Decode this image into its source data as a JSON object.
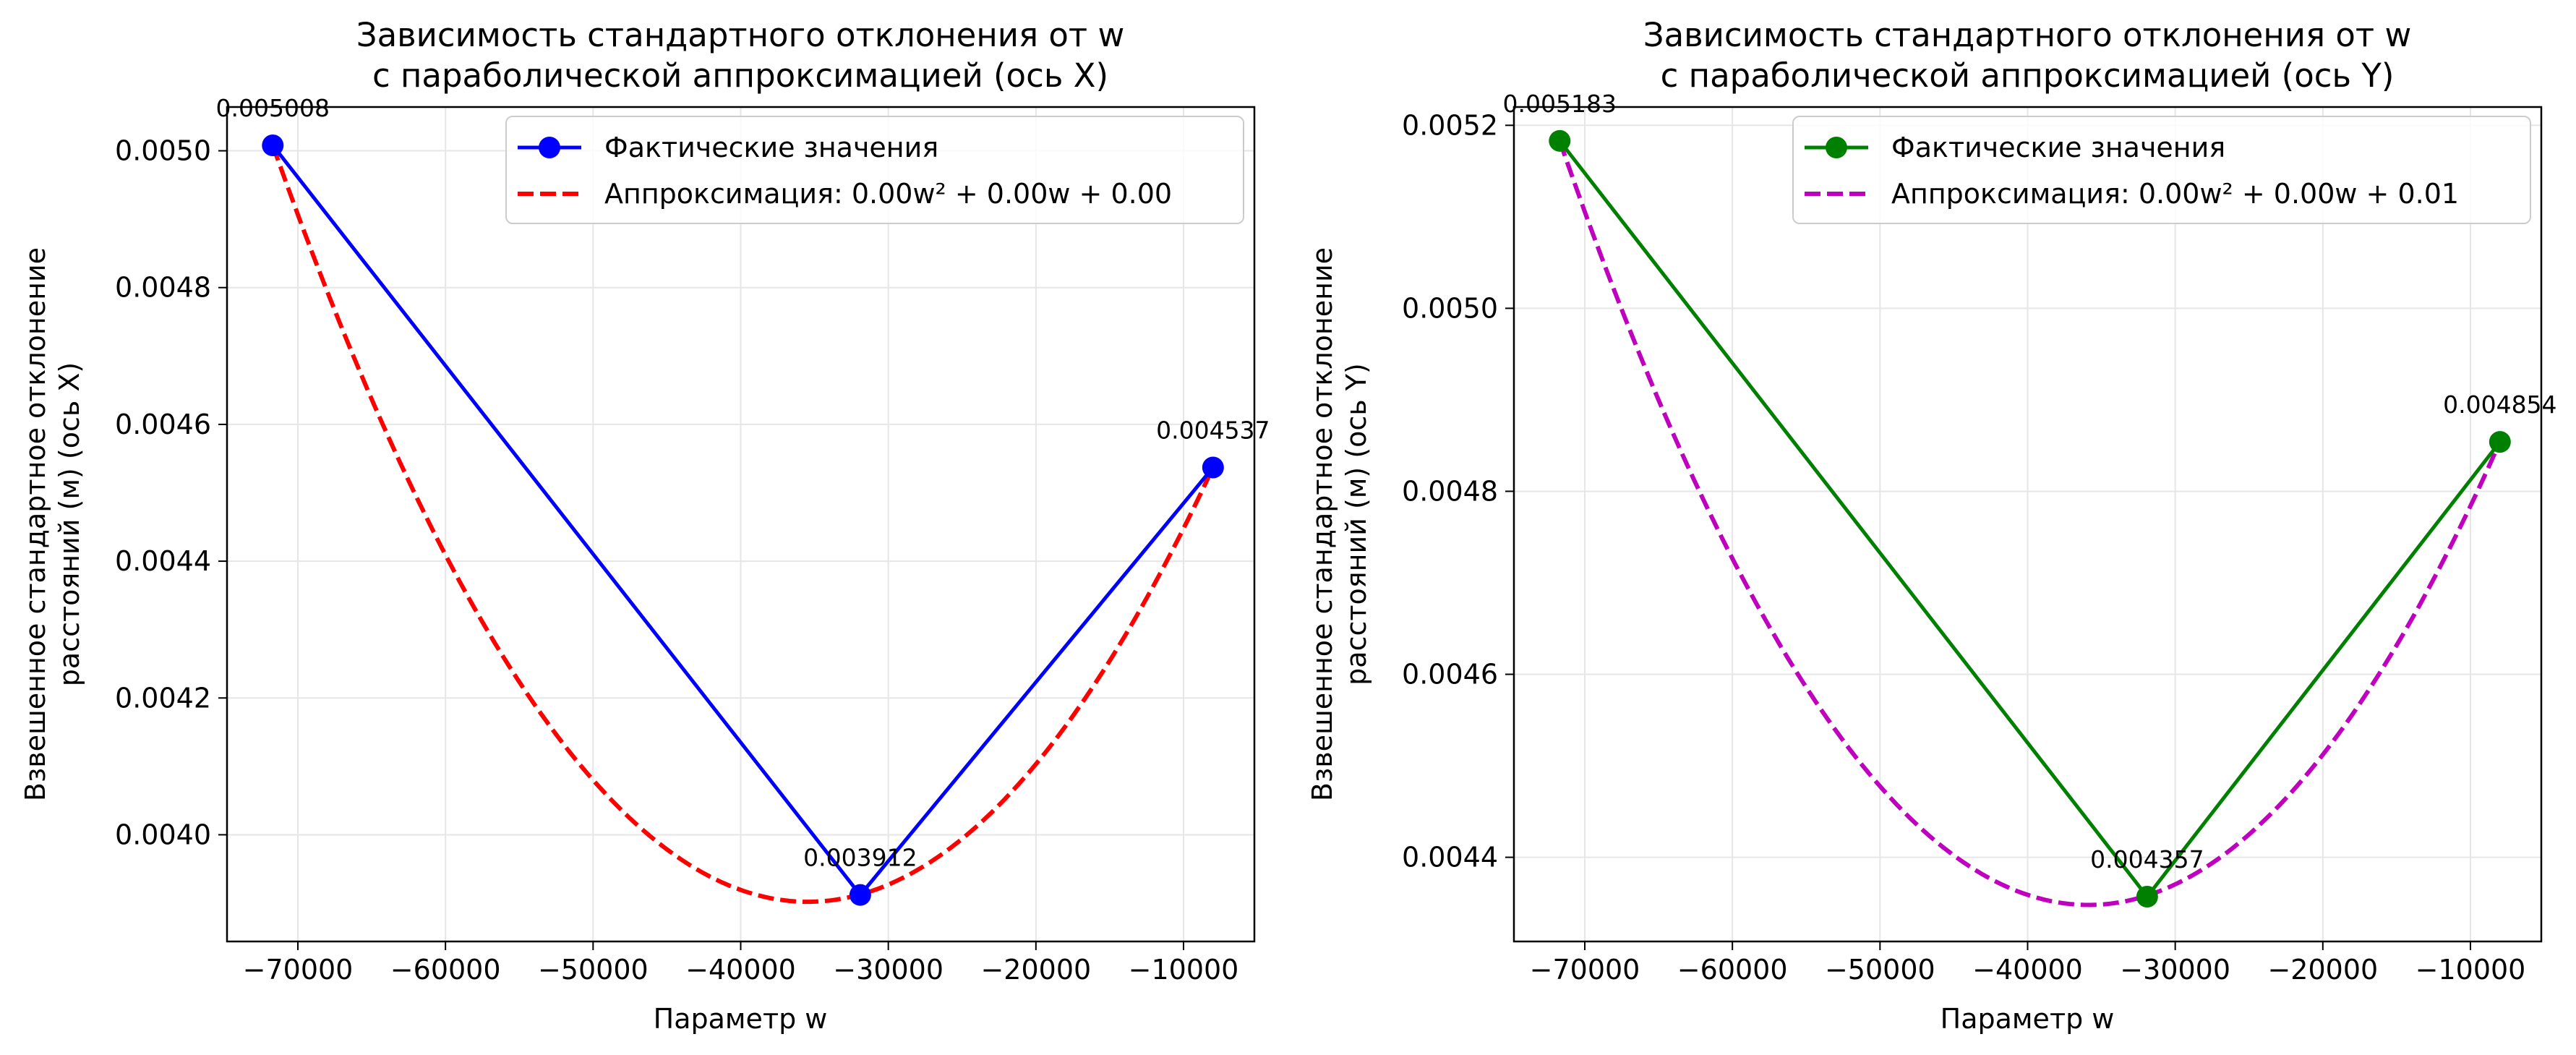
{
  "colors": {
    "background": "#ffffff",
    "grid": "#e6e6e6",
    "axes": "#000000"
  },
  "chart_data": [
    {
      "type": "line",
      "title_line1": "Зависимость стандартного отклонения от w",
      "title_line2": "с параболической аппроксимацией (ось X)",
      "xlabel": "Параметр w",
      "ylabel_line1": "Взвешенное стандартное отклонение",
      "ylabel_line2": "расстояний (м) (ось X)",
      "xlim": [
        -74800,
        -5200
      ],
      "ylim": [
        0.003844,
        0.005064
      ],
      "grid": true,
      "legend_position": "top-right",
      "xticks": [
        -70000,
        -60000,
        -50000,
        -40000,
        -30000,
        -20000,
        -10000
      ],
      "xtick_labels": [
        "−70000",
        "−60000",
        "−50000",
        "−40000",
        "−30000",
        "−20000",
        "−10000"
      ],
      "yticks": [
        0.004,
        0.0042,
        0.0044,
        0.0046,
        0.0048,
        0.005
      ],
      "ytick_labels": [
        "0.0040",
        "0.0042",
        "0.0044",
        "0.0046",
        "0.0048",
        "0.0050"
      ],
      "series": [
        {
          "name": "Фактические значения",
          "style": "solid-markers",
          "color": "#0000ff",
          "x": [
            -71700,
            -31900,
            -8000
          ],
          "y": [
            0.005008,
            0.003912,
            0.004537
          ]
        },
        {
          "name": "Аппроксимация: 0.00w² + 0.00w + 0.00",
          "style": "dashed",
          "color": "#ff0000",
          "fit_points": [
            [
              -71700,
              0.005008
            ],
            [
              -35500,
              0.003902
            ],
            [
              -8000,
              0.004537
            ]
          ],
          "x_range": [
            -71700,
            -8000
          ]
        }
      ],
      "data_labels": [
        {
          "x": -71700,
          "y": 0.005008,
          "text": "0.005008"
        },
        {
          "x": -31900,
          "y": 0.003912,
          "text": "0.003912"
        },
        {
          "x": -8000,
          "y": 0.004537,
          "text": "0.004537"
        }
      ]
    },
    {
      "type": "line",
      "title_line1": "Зависимость стандартного отклонения от w",
      "title_line2": "с параболической аппроксимацией (ось Y)",
      "xlabel": "Параметр w",
      "ylabel_line1": "Взвешенное стандартное отклонение",
      "ylabel_line2": "расстояний (м) (ось Y)",
      "xlim": [
        -74800,
        -5200
      ],
      "ylim": [
        0.004308,
        0.00522
      ],
      "grid": true,
      "legend_position": "top-right",
      "xticks": [
        -70000,
        -60000,
        -50000,
        -40000,
        -30000,
        -20000,
        -10000
      ],
      "xtick_labels": [
        "−70000",
        "−60000",
        "−50000",
        "−40000",
        "−30000",
        "−20000",
        "−10000"
      ],
      "yticks": [
        0.0044,
        0.0046,
        0.0048,
        0.005,
        0.0052
      ],
      "ytick_labels": [
        "0.0044",
        "0.0046",
        "0.0048",
        "0.0050",
        "0.0052"
      ],
      "series": [
        {
          "name": "Фактические значения",
          "style": "solid-markers",
          "color": "#008000",
          "x": [
            -71700,
            -31900,
            -8000
          ],
          "y": [
            0.005183,
            0.004357,
            0.004854
          ]
        },
        {
          "name": "Аппроксимация: 0.00w² + 0.00w + 0.01",
          "style": "dashed",
          "color": "#bf00bf",
          "fit_points": [
            [
              -71700,
              0.005183
            ],
            [
              -35500,
              0.004348
            ],
            [
              -8000,
              0.004854
            ]
          ],
          "x_range": [
            -71700,
            -8000
          ]
        }
      ],
      "data_labels": [
        {
          "x": -71700,
          "y": 0.005183,
          "text": "0.005183"
        },
        {
          "x": -31900,
          "y": 0.004357,
          "text": "0.004357"
        },
        {
          "x": -8000,
          "y": 0.004854,
          "text": "0.004854"
        }
      ]
    }
  ]
}
